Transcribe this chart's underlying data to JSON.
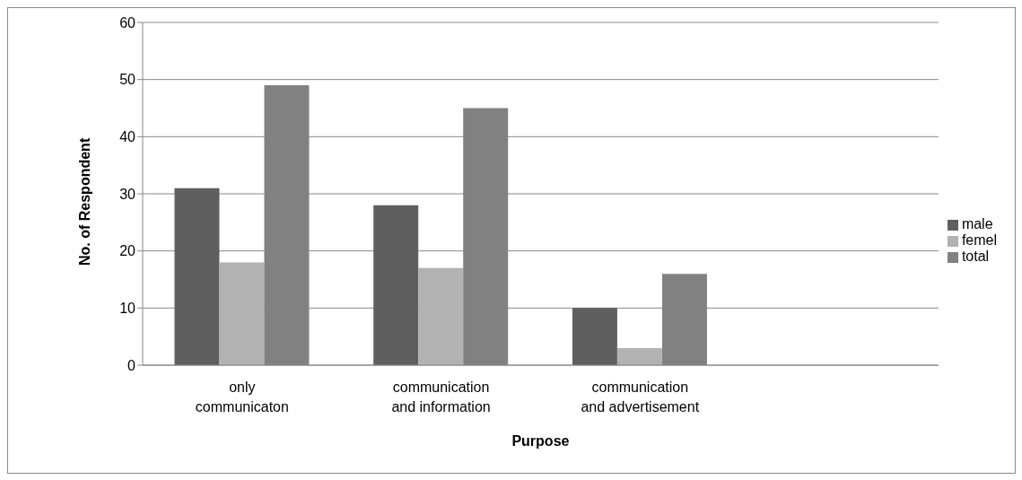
{
  "chart_data": {
    "type": "bar",
    "xlabel": "Purpose",
    "ylabel": "No. of Respondent",
    "categories": [
      "only communicaton",
      "communication and information",
      "communication and advertisement",
      null
    ],
    "series": [
      {
        "name": "male",
        "color": "#5f5f5f",
        "values": [
          31,
          28,
          10,
          null
        ]
      },
      {
        "name": "femel",
        "color": "#b2b2b2",
        "values": [
          18,
          17,
          3,
          null
        ]
      },
      {
        "name": "total",
        "color": "#818181",
        "values": [
          49,
          45,
          16,
          null
        ]
      }
    ],
    "ylim": [
      0,
      60
    ],
    "yticks": [
      0,
      10,
      20,
      30,
      40,
      50,
      60
    ],
    "grid": "y",
    "legend": "right"
  }
}
